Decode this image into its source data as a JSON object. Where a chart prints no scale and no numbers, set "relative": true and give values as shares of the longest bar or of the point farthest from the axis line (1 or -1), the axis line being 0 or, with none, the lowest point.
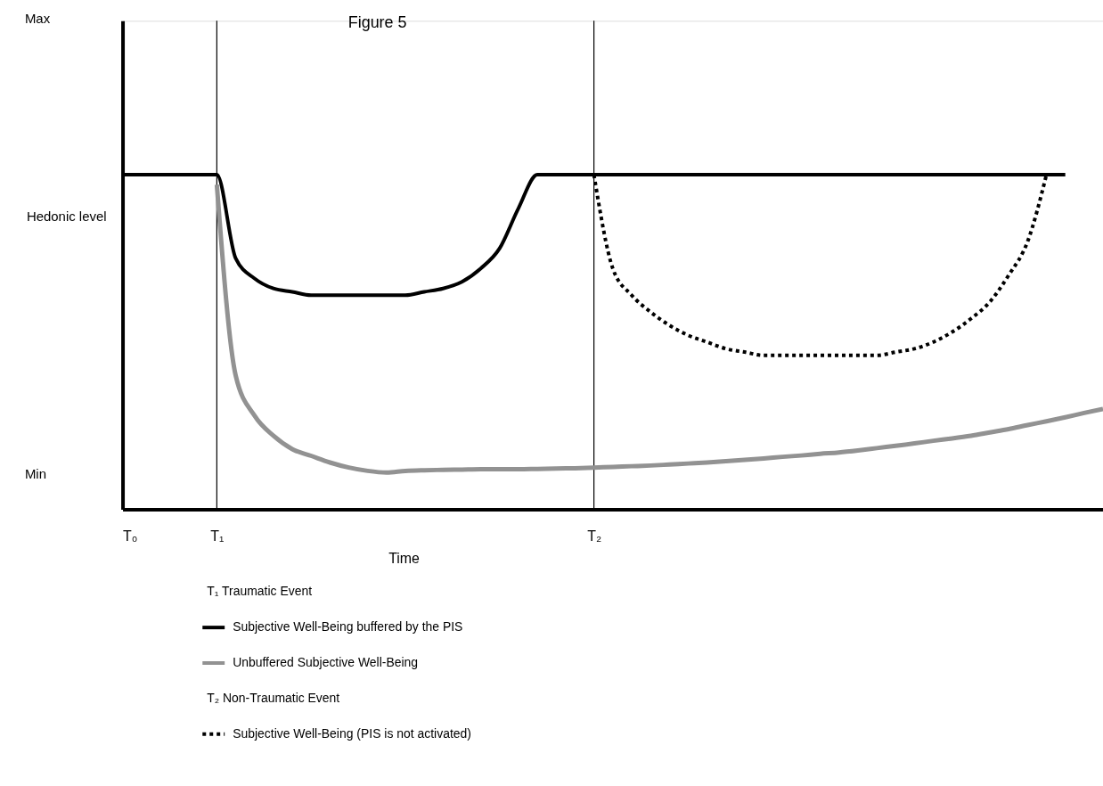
{
  "chart_data": {
    "type": "line",
    "title": "Figure 5",
    "xlabel": "Time",
    "ylabel": "Hedonic level",
    "relative": true,
    "grid": false,
    "marker": "none",
    "legend": "bottom",
    "categories": [
      "T₀",
      null,
      null,
      null,
      null,
      "T₁",
      null,
      null,
      null,
      null,
      null,
      null,
      null,
      null,
      null,
      null,
      null,
      null,
      null,
      null,
      null,
      null,
      null,
      null,
      null,
      "T₂",
      null,
      null,
      null,
      null,
      null,
      null,
      null,
      null,
      null,
      null,
      null,
      null,
      null,
      null,
      null,
      null,
      null,
      null,
      null,
      null,
      null,
      null,
      null,
      null,
      null,
      null,
      null
    ],
    "ref_lines": [
      {
        "axis": "x",
        "value": "T₁",
        "color": "#000000"
      },
      {
        "axis": "x",
        "value": "T₂",
        "color": "#000000"
      }
    ],
    "annotations": [
      "Max",
      "Min",
      "T₁  Traumatic Event",
      "T₂  Non-Traumatic Event"
    ],
    "series": [
      {
        "name": "Subjective Well-Being buffered by the PIS",
        "color": "#000000",
        "line_style": "solid",
        "values": [
          1,
          1,
          1,
          1,
          1,
          1,
          0.75,
          0.69,
          0.66,
          0.65,
          0.64,
          0.64,
          0.64,
          0.64,
          0.64,
          0.64,
          0.65,
          0.66,
          0.68,
          0.72,
          0.78,
          0.9,
          1,
          1,
          1,
          1,
          1,
          1,
          1,
          1,
          1,
          1,
          1,
          1,
          1,
          1,
          1,
          1,
          1,
          1,
          1,
          1,
          1,
          1,
          1,
          1,
          1,
          1,
          1,
          1,
          1,
          null,
          null
        ]
      },
      {
        "name": "Unbuffered Subjective Well-Being",
        "color": "#929292",
        "line_style": "solid",
        "values": [
          null,
          null,
          null,
          null,
          null,
          0.97,
          0.4,
          0.28,
          0.22,
          0.18,
          0.16,
          0.14,
          0.125,
          0.115,
          0.11,
          0.115,
          0.117,
          0.118,
          0.119,
          0.12,
          0.12,
          0.12,
          0.121,
          0.122,
          0.123,
          0.125,
          0.127,
          0.129,
          0.131,
          0.134,
          0.137,
          0.14,
          0.144,
          0.148,
          0.152,
          0.157,
          0.161,
          0.166,
          0.17,
          0.176,
          0.183,
          0.19,
          0.197,
          0.205,
          0.212,
          0.22,
          0.23,
          0.24,
          0.252,
          0.263,
          0.275,
          0.288,
          0.3
        ]
      },
      {
        "name": "Subjective Well-Being (PIS is not activated)",
        "color": "#000000",
        "line_style": "dotted",
        "values": [
          null,
          null,
          null,
          null,
          null,
          null,
          null,
          null,
          null,
          null,
          null,
          null,
          null,
          null,
          null,
          null,
          null,
          null,
          null,
          null,
          null,
          null,
          null,
          null,
          null,
          1,
          0.72,
          0.64,
          0.59,
          0.55,
          0.52,
          0.5,
          0.48,
          0.47,
          0.46,
          0.46,
          0.46,
          0.46,
          0.46,
          0.46,
          0.46,
          0.47,
          0.48,
          0.5,
          0.53,
          0.57,
          0.62,
          0.7,
          0.8,
          1,
          null,
          null,
          null
        ]
      }
    ]
  }
}
